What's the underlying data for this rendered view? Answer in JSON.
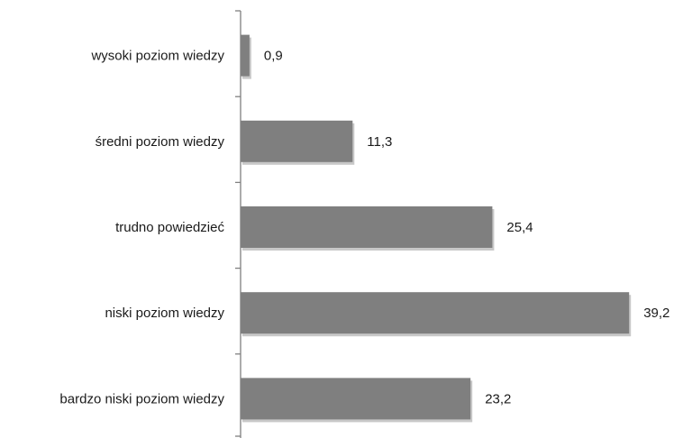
{
  "chart_data": {
    "type": "bar",
    "orientation": "horizontal",
    "categories": [
      "wysoki poziom wiedzy",
      "średni poziom wiedzy",
      "trudno powiedzieć",
      "niski poziom wiedzy",
      "bardzo niski poziom wiedzy"
    ],
    "values": [
      0.9,
      11.3,
      25.4,
      39.2,
      23.2
    ],
    "value_labels": [
      "0,9",
      "11,3",
      "25,4",
      "39,2",
      "23,2"
    ],
    "xlim": [
      0,
      40
    ],
    "grid": false,
    "legend": "none",
    "bar_color": "#7f7f7f",
    "axis_color": "#808080"
  }
}
